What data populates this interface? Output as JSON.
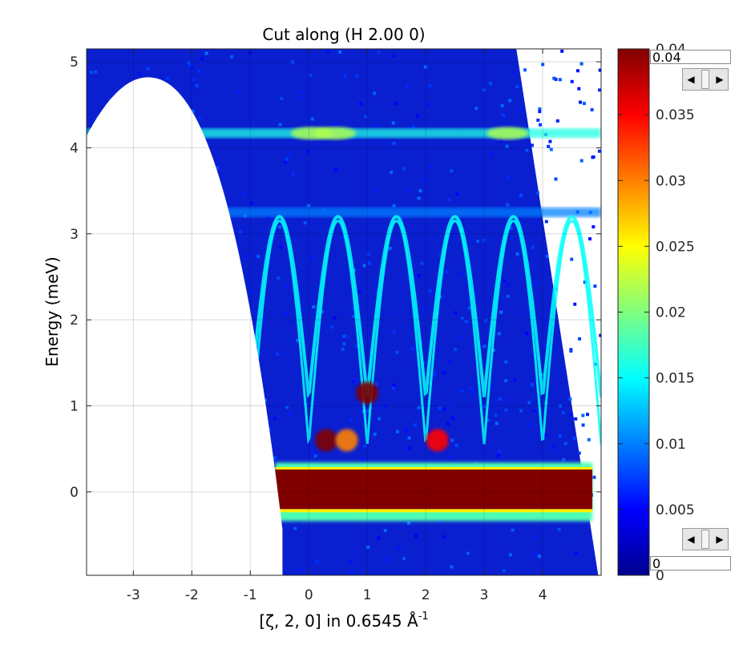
{
  "chart_data": {
    "type": "heatmap",
    "title": "Cut along (H 2.00 0)",
    "xlabel_main": "[ζ, 2, 0] in 0.6545 Å",
    "xlabel_sup": "-1",
    "ylabel": "Energy (meV)",
    "xlim": [
      -3.8,
      5.0
    ],
    "ylim": [
      -0.97,
      5.15
    ],
    "xticks": [
      -3,
      -2,
      -1,
      0,
      1,
      2,
      3,
      4
    ],
    "xtick_labels": [
      "-3",
      "-2",
      "-1",
      "0",
      "1",
      "2",
      "3",
      "4"
    ],
    "yticks": [
      0,
      1,
      2,
      3,
      4,
      5
    ],
    "ytick_labels": [
      "0",
      "1",
      "2",
      "3",
      "4",
      "5"
    ],
    "grid": true,
    "colormap": "jet",
    "colorbar": {
      "clim": [
        0,
        0.04
      ],
      "ticks": [
        0,
        0.005,
        0.01,
        0.015,
        0.02,
        0.025,
        0.03,
        0.035,
        0.04
      ],
      "tick_labels": [
        "0",
        "0.005",
        "0.01",
        "0.015",
        "0.02",
        "0.025",
        "0.03",
        "0.035",
        "0.04"
      ],
      "max_edit_value": "0.04",
      "min_edit_value": "0"
    },
    "elastic_line": {
      "energy": 0.0,
      "half_width": 0.22,
      "x_range": [
        -0.57,
        4.85
      ],
      "intensity": 0.04
    },
    "flat_bands": [
      {
        "energy": 4.17,
        "intensity": 0.016
      },
      {
        "energy": 3.25,
        "intensity": 0.01
      }
    ],
    "dispersive_modes": [
      {
        "q_min": 1.0,
        "e_min": 1.1,
        "bandwidth": 2.1,
        "period": 1.0
      },
      {
        "q_min": 0.0,
        "e_min": 0.55,
        "bandwidth": 2.6,
        "period": 1.0
      }
    ],
    "low_energy_hotspots": [
      {
        "x": 0.3,
        "energy": 0.6,
        "intensity": 0.04
      },
      {
        "x": 0.65,
        "energy": 0.6,
        "intensity": 0.03
      },
      {
        "x": 2.2,
        "energy": 0.6,
        "intensity": 0.035
      },
      {
        "x": 1.0,
        "energy": 1.15,
        "intensity": 0.04
      }
    ],
    "coverage": {
      "description": "Trapezoidal detector coverage; white where no data",
      "left_cap_peak": [
        -2.75,
        4.82
      ],
      "right_edge_x_at_top": 3.55,
      "right_edge_x_at_bottom": 4.95
    }
  }
}
